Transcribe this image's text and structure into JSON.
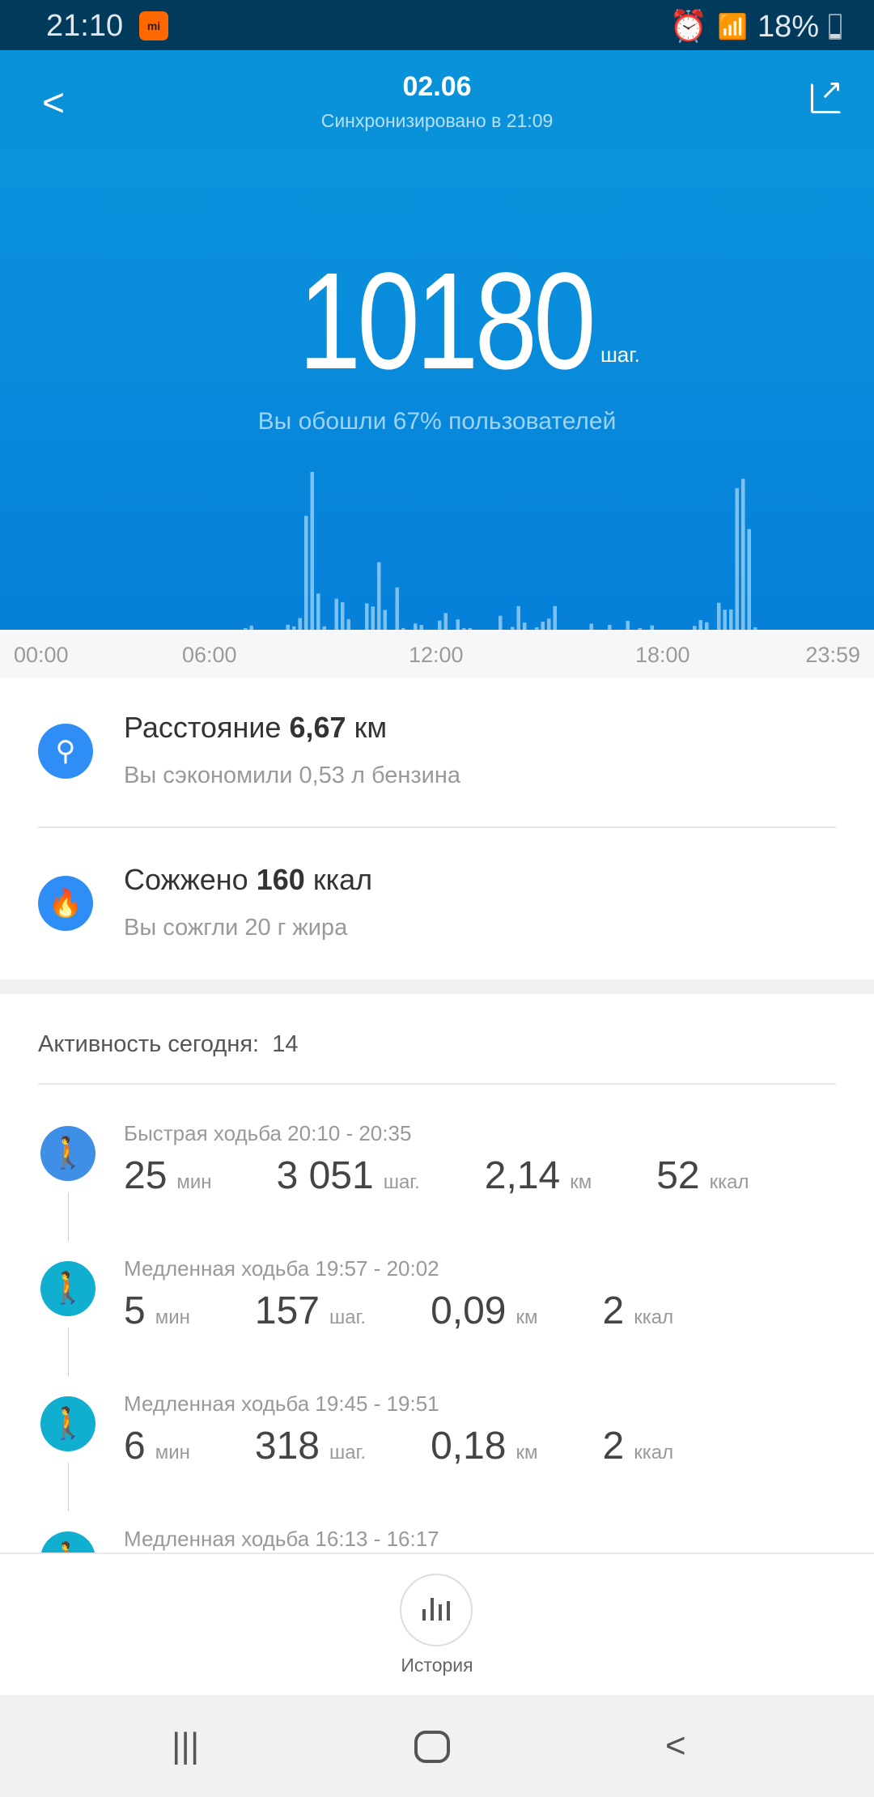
{
  "status_bar": {
    "time": "21:10",
    "battery": "18%",
    "battery_level": 18,
    "icons": [
      "mi-fit-icon",
      "alarm-icon",
      "wifi-icon",
      "signal-icon",
      "signal-icon",
      "battery-icon"
    ]
  },
  "header": {
    "title": "02.06",
    "subtitle": "Синхронизировано в 21:09"
  },
  "summary": {
    "steps": "10180",
    "steps_unit": "шаг.",
    "comparison": "Вы обошли 67% пользователей"
  },
  "chart_data": {
    "type": "bar",
    "x_ticks": [
      "00:00",
      "06:00",
      "12:00",
      "18:00",
      "23:59"
    ],
    "x": [
      "06:40",
      "06:50",
      "07:50",
      "08:00",
      "08:10",
      "08:20",
      "08:30",
      "08:40",
      "08:50",
      "09:10",
      "09:20",
      "09:30",
      "10:00",
      "10:10",
      "10:20",
      "10:30",
      "10:50",
      "11:00",
      "11:20",
      "11:30",
      "12:00",
      "12:10",
      "12:30",
      "12:40",
      "12:50",
      "13:40",
      "14:00",
      "14:10",
      "14:20",
      "14:40",
      "14:50",
      "15:00",
      "15:10",
      "16:10",
      "16:40",
      "17:10",
      "17:30",
      "17:50",
      "19:00",
      "19:10",
      "19:20",
      "19:40",
      "19:50",
      "20:00",
      "20:10",
      "20:20",
      "20:30",
      "20:40"
    ],
    "values": [
      6,
      32,
      39,
      26,
      90,
      880,
      1220,
      280,
      26,
      240,
      213,
      82,
      204,
      180,
      522,
      153,
      327,
      13,
      49,
      37,
      71,
      129,
      80,
      6,
      4,
      108,
      22,
      183,
      56,
      19,
      62,
      86,
      183,
      47,
      37,
      69,
      11,
      34,
      30,
      75,
      58,
      209,
      155,
      157,
      1094,
      1167,
      778,
      19
    ],
    "color": "#8fcdf6"
  },
  "stats": [
    {
      "icon": "location-route-icon",
      "label": "Расстояние",
      "value": "6,67",
      "unit": "км",
      "desc": "Вы сэкономили 0,53 л бензина"
    },
    {
      "icon": "flame-icon",
      "label": "Сожжено",
      "value": "160",
      "unit": "ккал",
      "desc": "Вы сожгли 20 г жира"
    }
  ],
  "activity": {
    "label": "Активность сегодня:",
    "count": "14",
    "items": [
      {
        "title": "Быстрая ходьба 20:10 - 20:35",
        "color": "#3f8fe6",
        "values": [
          [
            "25",
            "мин"
          ],
          [
            "3 051",
            "шаг."
          ],
          [
            "2,14",
            "км"
          ],
          [
            "52",
            "ккал"
          ]
        ]
      },
      {
        "title": "Медленная ходьба 19:57 - 20:02",
        "color": "#10aecf",
        "values": [
          [
            "5",
            "мин"
          ],
          [
            "157",
            "шаг."
          ],
          [
            "0,09",
            "км"
          ],
          [
            "2",
            "ккал"
          ]
        ]
      },
      {
        "title": "Медленная ходьба 19:45 - 19:51",
        "color": "#10aecf",
        "values": [
          [
            "6",
            "мин"
          ],
          [
            "318",
            "шаг."
          ],
          [
            "0,18",
            "км"
          ],
          [
            "2",
            "ккал"
          ]
        ]
      },
      {
        "title": "Медленная ходьба 16:13 - 16:17",
        "color": "#10aecf",
        "values": []
      }
    ]
  },
  "bottom": {
    "history_label": "История"
  }
}
